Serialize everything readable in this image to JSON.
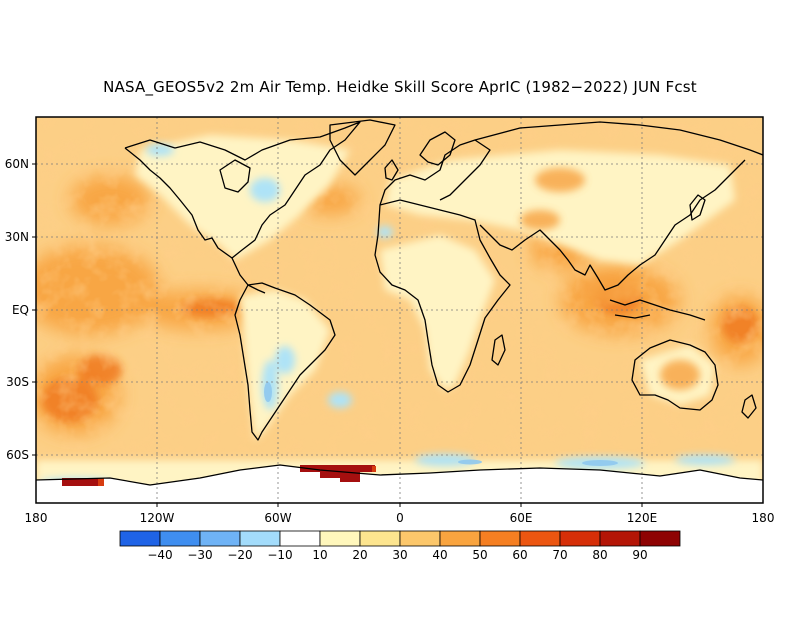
{
  "title": "NASA_GEOS5v2 2m Air Temp. Heidke Skill Score AprIC (1982−2022) JUN Fcst",
  "map": {
    "lat_labels": [
      "60N",
      "30N",
      "EQ",
      "30S",
      "60S"
    ],
    "lon_labels": [
      "180",
      "120W",
      "60W",
      "0",
      "60E",
      "120E",
      "180"
    ],
    "palette": {
      "ocean_warm": "#fbc36a",
      "ocean_hot": "#f58a28",
      "land_pale": "#fff4c0",
      "cool": "#b0e6f6",
      "cold": "#8ec7ef",
      "extreme": "#a50f0f",
      "coast": "#000000"
    }
  },
  "colorbar": {
    "labels": [
      "−40",
      "−30",
      "−20",
      "−10",
      "10",
      "20",
      "30",
      "40",
      "50",
      "60",
      "70",
      "80",
      "90"
    ],
    "colors": [
      "#1f63e6",
      "#3f8ef0",
      "#6fb3f6",
      "#a3dcfb",
      "#ffffff",
      "#fff7bc",
      "#fde58f",
      "#fcc76b",
      "#f9a43f",
      "#f57f22",
      "#ec5611",
      "#d62f08",
      "#b41506",
      "#8e0303"
    ]
  }
}
